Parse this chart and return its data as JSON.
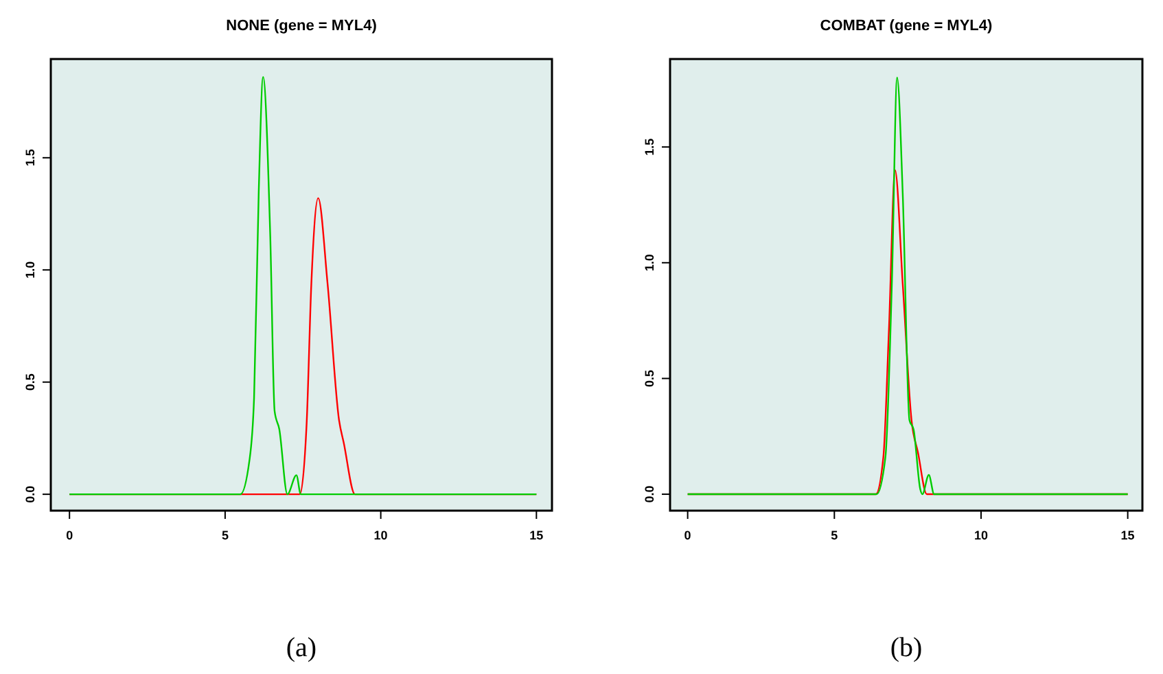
{
  "chart_data": [
    {
      "type": "line",
      "title": "NONE (gene = MYL4)",
      "xlim": [
        -0.6,
        15.5
      ],
      "ylim": [
        -0.073,
        1.94
      ],
      "xticks": [
        0,
        5,
        10,
        15
      ],
      "yticks": [
        {
          "value": 0,
          "label": "0.0"
        },
        {
          "value": 0.5,
          "label": "0.5"
        },
        {
          "value": 1,
          "label": "1.0"
        },
        {
          "value": 1.5,
          "label": "1.5"
        }
      ],
      "grid": false,
      "marker": "none",
      "line_style": "solid",
      "annotations": [
        "(a)"
      ],
      "series": [
        {
          "color": "#ff0000",
          "x": [
            0,
            7.4,
            7.62,
            7.77,
            7.99,
            8.29,
            8.66,
            8.81,
            9.17,
            15
          ],
          "values": [
            0,
            0,
            0.32,
            0.94,
            1.32,
            0.94,
            0.33,
            0.23,
            0,
            0
          ]
        },
        {
          "color": "#00cc00",
          "x": [
            0,
            5.49,
            5.78,
            5.93,
            6.08,
            6.22,
            6.45,
            6.59,
            6.74,
            7.0,
            7.29,
            7.43,
            15
          ],
          "values": [
            0,
            0,
            0.15,
            0.43,
            1.35,
            1.86,
            1.15,
            0.37,
            0.29,
            0,
            0.085,
            0,
            0
          ]
        }
      ]
    },
    {
      "type": "line",
      "title": "COMBAT (gene = MYL4)",
      "xlim": [
        -0.6,
        15.5
      ],
      "ylim": [
        -0.071,
        1.88
      ],
      "xticks": [
        0,
        5,
        10,
        15
      ],
      "yticks": [
        {
          "value": 0,
          "label": "0.0"
        },
        {
          "value": 0.5,
          "label": "0.5"
        },
        {
          "value": 1,
          "label": "1.0"
        },
        {
          "value": 1.5,
          "label": "1.5"
        }
      ],
      "grid": false,
      "marker": "none",
      "line_style": "solid",
      "annotations": [
        "(b)"
      ],
      "series": [
        {
          "color": "#ff0000",
          "x": [
            0,
            6.41,
            6.67,
            6.86,
            7.07,
            7.33,
            7.63,
            7.85,
            8.15,
            15
          ],
          "values": [
            0,
            0,
            0.16,
            0.71,
            1.4,
            0.91,
            0.32,
            0.18,
            0,
            0
          ]
        },
        {
          "color": "#00cc00",
          "x": [
            0,
            6.44,
            6.74,
            6.96,
            7.14,
            7.33,
            7.56,
            7.7,
            7.93,
            8.0,
            8.22,
            8.4,
            15
          ],
          "values": [
            0,
            0,
            0.16,
            0.91,
            1.8,
            1.3,
            0.32,
            0.28,
            0.02,
            0,
            0.083,
            0,
            0
          ]
        }
      ]
    }
  ]
}
